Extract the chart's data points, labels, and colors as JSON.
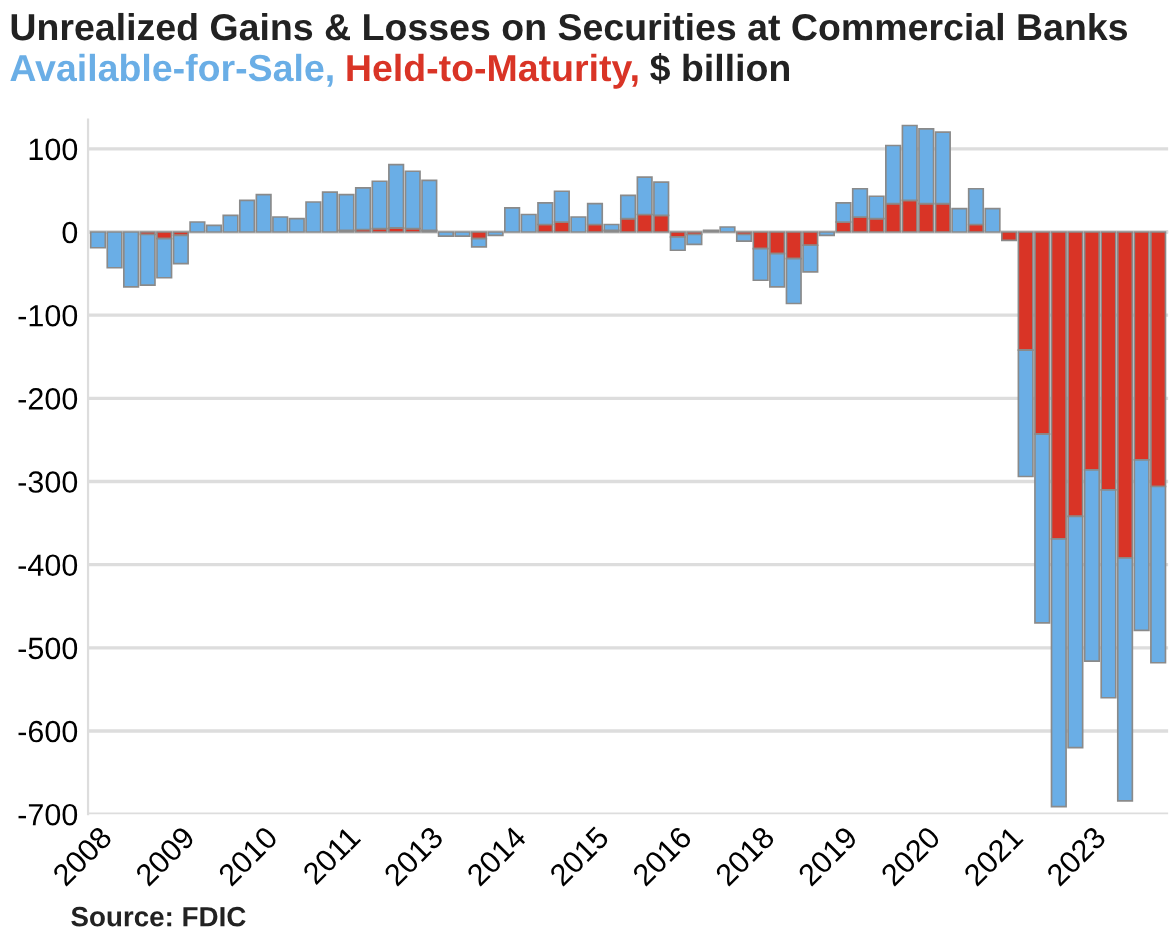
{
  "chart_data": {
    "type": "bar",
    "stacked": true,
    "title": "Unrealized Gains & Losses on Securities at Commercial Banks",
    "subtitle": "$ billion",
    "categories": [
      "2008",
      null,
      null,
      null,
      null,
      "2009",
      null,
      null,
      null,
      null,
      "2010",
      null,
      null,
      null,
      null,
      "2011",
      null,
      null,
      null,
      null,
      "2013",
      null,
      null,
      null,
      null,
      "2014",
      null,
      null,
      null,
      null,
      "2015",
      null,
      null,
      null,
      null,
      "2016",
      null,
      null,
      null,
      null,
      "2018",
      null,
      null,
      null,
      null,
      "2019",
      null,
      null,
      null,
      null,
      "2020",
      null,
      null,
      null,
      null,
      "2021",
      null,
      null,
      null,
      null,
      "2023",
      null,
      null,
      null,
      null
    ],
    "series": [
      {
        "name": "Held-to-Maturity,",
        "color": "#d93426",
        "values": [
          0,
          0,
          0,
          -3,
          -8,
          -4,
          0,
          0,
          0,
          0,
          null,
          0,
          0,
          0,
          0,
          2,
          3,
          4,
          5,
          4,
          2,
          0,
          0,
          -8,
          0,
          null,
          0,
          9,
          12,
          0,
          9,
          2,
          16,
          21,
          20,
          -6,
          -3,
          0,
          0,
          -3,
          -20,
          -26,
          -32,
          -16,
          0,
          12,
          18,
          16,
          34,
          38,
          34,
          34,
          0,
          9,
          0,
          -10,
          -142,
          -243,
          -369,
          -342,
          -286,
          -310,
          -392,
          -274,
          -306
        ]
      },
      {
        "name": "Available-for-Sale,",
        "color": "#6aaee6",
        "values": [
          -19,
          -43,
          -66,
          -61,
          -47,
          -34,
          12,
          8,
          20,
          38,
          45,
          18,
          16,
          36,
          48,
          43,
          50,
          57,
          76,
          69,
          60,
          -5,
          -5,
          -10,
          -4,
          29,
          21,
          26,
          37,
          18,
          25,
          7,
          28,
          45,
          40,
          -16,
          -12,
          2,
          6,
          -8,
          -38,
          -40,
          -54,
          -32,
          -4,
          23,
          34,
          27,
          70,
          90,
          90,
          86,
          28,
          43,
          28,
          0,
          -152,
          -227,
          -322,
          -278,
          -230,
          -250,
          -292,
          -205,
          -212
        ]
      }
    ],
    "ylim": [
      -700,
      135
    ],
    "yticks": [
      -700,
      -600,
      -500,
      -400,
      -300,
      -200,
      -100,
      0,
      100
    ],
    "grid": "y",
    "annotations": [
      "Source: FDIC"
    ]
  }
}
